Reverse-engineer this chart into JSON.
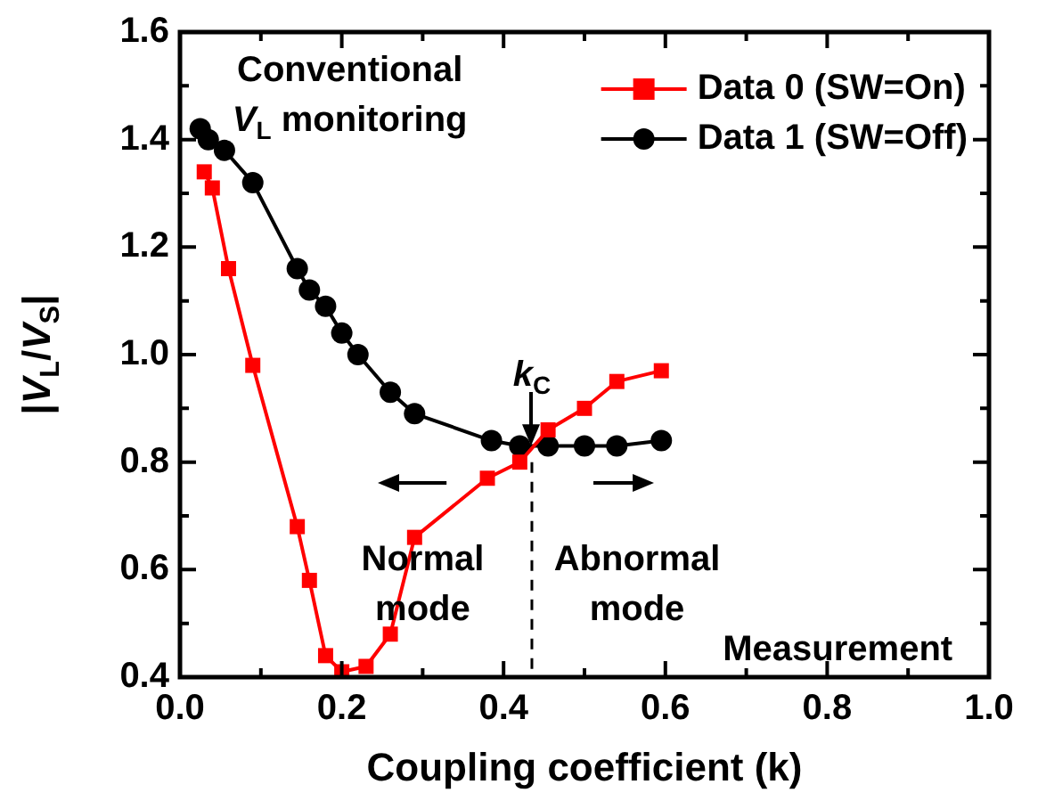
{
  "chart_data": {
    "type": "line",
    "xlabel": "Coupling coefficient (k)",
    "ylabel": "|V$_{L}$/V$_{S}$|",
    "xlim": [
      0,
      1
    ],
    "xticks": [
      {
        "value": 0,
        "label": "0.0"
      },
      {
        "value": 0.1,
        "label": null
      },
      0.2,
      {
        "value": 0.3,
        "label": null
      },
      0.4,
      {
        "value": 0.5,
        "label": null
      },
      0.6,
      {
        "value": 0.7,
        "label": null
      },
      0.8,
      {
        "value": 0.9,
        "label": null
      },
      {
        "value": 1,
        "label": "1.0"
      }
    ],
    "ylim": [
      0.4,
      1.6
    ],
    "yticks": [
      0.4,
      {
        "value": 0.5,
        "label": null
      },
      0.6,
      {
        "value": 0.7,
        "label": null
      },
      0.8,
      {
        "value": 0.9,
        "label": null
      },
      {
        "value": 1,
        "label": "1.0"
      },
      {
        "value": 1.1,
        "label": null
      },
      1.2,
      {
        "value": 1.3,
        "label": null
      },
      1.4,
      {
        "value": 1.5,
        "label": null
      },
      1.6
    ],
    "grid": false,
    "legend": "top right",
    "line_style": "solid",
    "series": [
      {
        "name": "Data 0 (SW=On)",
        "color": "#ff0000",
        "marker": "square",
        "x": [
          0.03,
          0.04,
          0.06,
          0.09,
          0.145,
          0.16,
          0.18,
          0.2,
          0.23,
          0.26,
          0.29,
          0.38,
          0.42,
          0.455,
          0.5,
          0.54,
          0.595
        ],
        "values": [
          1.34,
          1.31,
          1.16,
          0.98,
          0.68,
          0.58,
          0.44,
          0.41,
          0.42,
          0.48,
          0.66,
          0.77,
          0.8,
          0.86,
          0.9,
          0.95,
          0.97
        ]
      },
      {
        "name": "Data 1 (SW=Off)",
        "color": "#000000",
        "marker": "circle",
        "x": [
          0.025,
          0.035,
          0.055,
          0.09,
          0.145,
          0.16,
          0.18,
          0.2,
          0.22,
          0.26,
          0.29,
          0.385,
          0.42,
          0.455,
          0.5,
          0.54,
          0.595
        ],
        "values": [
          1.42,
          1.4,
          1.38,
          1.32,
          1.16,
          1.12,
          1.09,
          1.04,
          1.0,
          0.93,
          0.89,
          0.84,
          0.83,
          0.83,
          0.83,
          0.83,
          0.84
        ]
      }
    ],
    "ref_lines": [
      {
        "axis": "x",
        "value": 0.435,
        "label": "k$_{C}$",
        "color": "#000000",
        "line_style": "dashed"
      }
    ],
    "annotations": [
      "Conventional\nV$_{L}$ monitoring",
      "Normal\nmode",
      "Abnormal\nmode",
      "Measurement"
    ]
  }
}
